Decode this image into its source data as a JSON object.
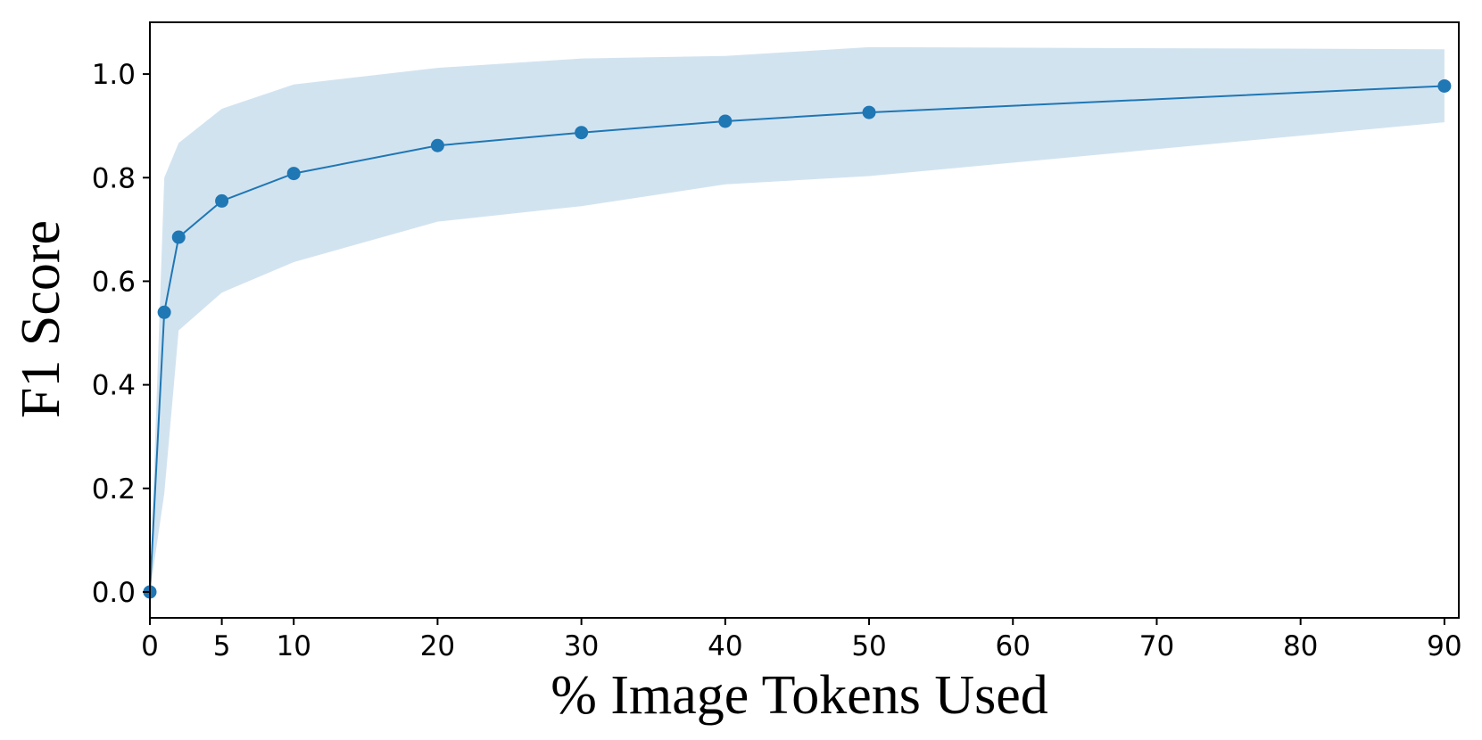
{
  "chart_data": {
    "type": "line",
    "title": "",
    "xlabel": "% Image Tokens Used",
    "ylabel": "F1 Score",
    "xlim": [
      0,
      91
    ],
    "ylim": [
      -0.05,
      1.1
    ],
    "x_ticks": [
      0,
      5,
      10,
      20,
      30,
      40,
      50,
      60,
      70,
      80,
      90
    ],
    "y_ticks": [
      0.0,
      0.2,
      0.4,
      0.6,
      0.8,
      1.0
    ],
    "x_tick_labels": [
      "0",
      "5",
      "10",
      "20",
      "30",
      "40",
      "50",
      "60",
      "70",
      "80",
      "90"
    ],
    "y_tick_labels": [
      "0.0",
      "0.2",
      "0.4",
      "0.6",
      "0.8",
      "1.0"
    ],
    "grid": false,
    "legend": "none",
    "series": [
      {
        "x": [
          0,
          1,
          2,
          5,
          10,
          20,
          30,
          40,
          50,
          90
        ],
        "y": [
          0.0,
          0.54,
          0.685,
          0.755,
          0.808,
          0.862,
          0.887,
          0.909,
          0.926,
          0.977
        ],
        "lower": [
          0.0,
          0.19,
          0.505,
          0.578,
          0.637,
          0.715,
          0.745,
          0.787,
          0.803,
          0.907
        ],
        "upper": [
          0.0,
          0.8,
          0.867,
          0.933,
          0.98,
          1.012,
          1.03,
          1.035,
          1.052,
          1.048
        ],
        "color": "#1f77b4",
        "band_color": "#d2e3f0"
      }
    ]
  }
}
